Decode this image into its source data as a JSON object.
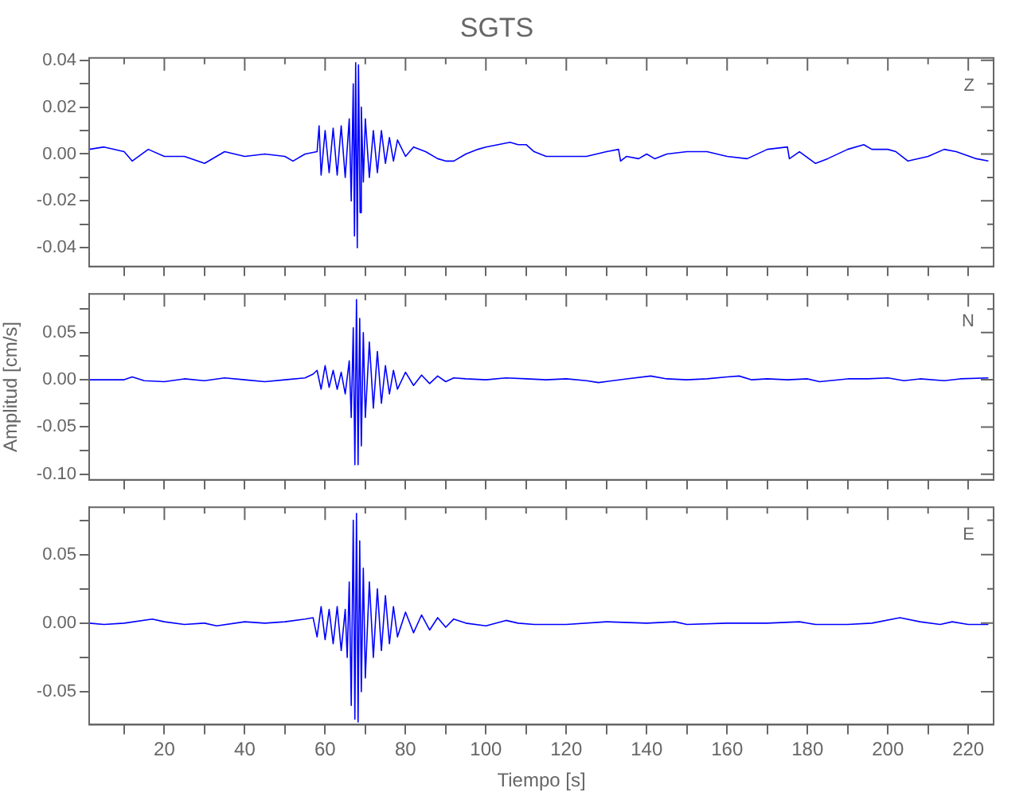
{
  "chart_data": [
    {
      "type": "line",
      "title": "SGTS",
      "tick_labels": "y",
      "grid": false,
      "legend": false,
      "marker": "none",
      "line_style": "solid",
      "xlim": [
        1.3,
        226.3
      ],
      "xticks": [
        {
          "value": 10,
          "label": null
        },
        20,
        {
          "value": 30,
          "label": null
        },
        40,
        {
          "value": 50,
          "label": null
        },
        60,
        {
          "value": 70,
          "label": null
        },
        80,
        {
          "value": 90,
          "label": null
        },
        100,
        {
          "value": 110,
          "label": null
        },
        120,
        {
          "value": 130,
          "label": null
        },
        140,
        {
          "value": 150,
          "label": null
        },
        160,
        {
          "value": 170,
          "label": null
        },
        180,
        {
          "value": 190,
          "label": null
        },
        200,
        {
          "value": 210,
          "label": null
        },
        220
      ],
      "ylim": [
        -0.048,
        0.041
      ],
      "yticks": [
        -0.04,
        {
          "value": -0.03,
          "label": null
        },
        -0.02,
        {
          "value": -0.01,
          "label": null
        },
        {
          "value": 0,
          "label": "0.00"
        },
        {
          "value": 0.01,
          "label": null
        },
        0.02,
        {
          "value": 0.03,
          "label": null
        },
        0.04
      ],
      "x": [
        1.3,
        5,
        10,
        12,
        16,
        20,
        25,
        30,
        35,
        40,
        45,
        50,
        52,
        55,
        58,
        58.5,
        59,
        60,
        61,
        62,
        63,
        64,
        65,
        66,
        66.5,
        67,
        67.3,
        67.6,
        68,
        68.3,
        68.7,
        69,
        69.5,
        70,
        71,
        72,
        73,
        74,
        75,
        76,
        77,
        78,
        80,
        82,
        85,
        88,
        90,
        92,
        95,
        98,
        100,
        103,
        106,
        108,
        110,
        112,
        115,
        120,
        125,
        130,
        133,
        133.5,
        135,
        138,
        140,
        142,
        145,
        150,
        155,
        160,
        165,
        170,
        175,
        175.5,
        178,
        182,
        185,
        190,
        194,
        196,
        200,
        202,
        205,
        210,
        214,
        217,
        222,
        225
      ],
      "series": [
        {
          "name": "Z",
          "color": "#0000ff",
          "values": [
            0.002,
            0.003,
            0.001,
            -0.003,
            0.002,
            -0.001,
            -0.001,
            -0.004,
            0.001,
            -0.001,
            0.0,
            -0.001,
            -0.003,
            0.0,
            0.001,
            0.012,
            -0.009,
            0.01,
            -0.008,
            0.011,
            -0.009,
            0.012,
            -0.01,
            0.015,
            -0.02,
            0.03,
            -0.035,
            0.039,
            -0.04,
            0.038,
            -0.025,
            0.02,
            -0.012,
            0.015,
            -0.01,
            0.01,
            -0.008,
            0.01,
            -0.004,
            0.007,
            -0.003,
            0.006,
            -0.001,
            0.003,
            0.001,
            -0.002,
            -0.003,
            -0.003,
            0.0,
            0.002,
            0.003,
            0.004,
            0.005,
            0.004,
            0.004,
            0.001,
            -0.001,
            -0.001,
            -0.001,
            0.001,
            0.002,
            -0.003,
            -0.001,
            -0.002,
            0.0,
            -0.002,
            0.0,
            0.001,
            0.001,
            -0.001,
            -0.002,
            0.002,
            0.003,
            -0.002,
            0.001,
            -0.004,
            -0.002,
            0.002,
            0.004,
            0.002,
            0.002,
            0.001,
            -0.003,
            -0.001,
            0.002,
            0.001,
            -0.002,
            -0.003
          ]
        }
      ]
    },
    {
      "type": "line",
      "ylabel": "Amplitud [cm/s]",
      "tick_labels": "y",
      "grid": false,
      "legend": false,
      "marker": "none",
      "line_style": "solid",
      "xlim": [
        1.3,
        226.3
      ],
      "xticks": [
        {
          "value": 10,
          "label": null
        },
        20,
        {
          "value": 30,
          "label": null
        },
        40,
        {
          "value": 50,
          "label": null
        },
        60,
        {
          "value": 70,
          "label": null
        },
        80,
        {
          "value": 90,
          "label": null
        },
        100,
        {
          "value": 110,
          "label": null
        },
        120,
        {
          "value": 130,
          "label": null
        },
        140,
        {
          "value": 150,
          "label": null
        },
        160,
        {
          "value": 170,
          "label": null
        },
        180,
        {
          "value": 190,
          "label": null
        },
        200,
        {
          "value": 210,
          "label": null
        },
        220
      ],
      "ylim": [
        -0.106,
        0.091
      ],
      "yticks": [
        {
          "value": -0.1,
          "label": "-0.10"
        },
        {
          "value": -0.075,
          "label": null
        },
        -0.05,
        {
          "value": -0.025,
          "label": null
        },
        {
          "value": 0,
          "label": "0.00"
        },
        {
          "value": 0.025,
          "label": null
        },
        0.05,
        {
          "value": 0.075,
          "label": null
        }
      ],
      "x": [
        1.3,
        10,
        12,
        15,
        20,
        25,
        30,
        35,
        40,
        45,
        50,
        55,
        57,
        58,
        59,
        60,
        61,
        62,
        63,
        64,
        65,
        66,
        66.5,
        67,
        67.4,
        67.8,
        68.2,
        68.6,
        69,
        69.5,
        70,
        71,
        72,
        73,
        74,
        75,
        76,
        77,
        78,
        80,
        82,
        84,
        86,
        88,
        90,
        92,
        95,
        100,
        105,
        110,
        115,
        120,
        125,
        128,
        135,
        141,
        145,
        150,
        155,
        160,
        163,
        166,
        170,
        175,
        180,
        183,
        190,
        195,
        200,
        204,
        208,
        214,
        218,
        225
      ],
      "series": [
        {
          "name": "N",
          "color": "#0000ff",
          "values": [
            0.0,
            0.0,
            0.003,
            -0.001,
            -0.002,
            0.001,
            -0.001,
            0.002,
            0.0,
            -0.002,
            0.0,
            0.002,
            0.006,
            0.01,
            -0.01,
            0.015,
            -0.008,
            0.01,
            -0.01,
            0.008,
            -0.015,
            0.02,
            -0.04,
            0.055,
            -0.09,
            0.085,
            -0.09,
            0.065,
            -0.07,
            0.05,
            -0.04,
            0.04,
            -0.03,
            0.03,
            -0.025,
            0.015,
            -0.015,
            0.01,
            -0.01,
            0.008,
            -0.006,
            0.005,
            -0.004,
            0.004,
            -0.002,
            0.002,
            0.001,
            0.0,
            0.002,
            0.001,
            0.0,
            0.001,
            -0.001,
            -0.003,
            0.001,
            0.004,
            0.001,
            0.0,
            0.001,
            0.003,
            0.004,
            0.0,
            0.001,
            0.0,
            0.001,
            -0.002,
            0.001,
            0.001,
            0.002,
            -0.001,
            0.001,
            -0.001,
            0.001,
            0.002
          ]
        }
      ]
    },
    {
      "type": "line",
      "xlabel": "Tiempo [s]",
      "grid": false,
      "legend": false,
      "marker": "none",
      "line_style": "solid",
      "xlim": [
        1.3,
        226.3
      ],
      "xticks": [
        {
          "value": 10,
          "label": null
        },
        20,
        {
          "value": 30,
          "label": null
        },
        40,
        {
          "value": 50,
          "label": null
        },
        60,
        {
          "value": 70,
          "label": null
        },
        80,
        {
          "value": 90,
          "label": null
        },
        100,
        {
          "value": 110,
          "label": null
        },
        120,
        {
          "value": 130,
          "label": null
        },
        140,
        {
          "value": 150,
          "label": null
        },
        160,
        {
          "value": 170,
          "label": null
        },
        180,
        {
          "value": 190,
          "label": null
        },
        200,
        {
          "value": 210,
          "label": null
        },
        220
      ],
      "ylim": [
        -0.074,
        0.0845
      ],
      "yticks": [
        -0.05,
        {
          "value": -0.025,
          "label": null
        },
        {
          "value": 0,
          "label": "0.00"
        },
        {
          "value": 0.025,
          "label": null
        },
        0.05,
        {
          "value": 0.075,
          "label": null
        }
      ],
      "x": [
        1.3,
        5,
        10,
        17,
        20,
        25,
        30,
        33,
        40,
        45,
        50,
        55,
        57,
        58,
        59,
        60,
        61,
        62,
        63,
        64,
        65,
        65.5,
        66,
        66.5,
        67,
        67.4,
        67.8,
        68.2,
        68.6,
        69,
        69.5,
        70,
        71,
        72,
        73,
        74,
        75,
        76,
        77,
        78,
        80,
        82,
        84,
        86,
        88,
        90,
        92,
        95,
        100,
        105,
        108,
        112,
        120,
        130,
        140,
        147,
        150,
        160,
        170,
        178,
        182,
        190,
        196,
        203,
        208,
        213,
        216,
        220,
        225
      ],
      "series": [
        {
          "name": "E",
          "color": "#0000ff",
          "values": [
            0.0,
            -0.001,
            0.0,
            0.003,
            0.001,
            -0.001,
            0.0,
            -0.002,
            0.001,
            0.0,
            0.001,
            0.003,
            0.004,
            -0.01,
            0.012,
            -0.012,
            0.01,
            -0.015,
            0.012,
            -0.02,
            0.01,
            -0.025,
            0.03,
            -0.06,
            0.075,
            -0.07,
            0.08,
            -0.072,
            0.06,
            -0.05,
            0.04,
            -0.04,
            0.03,
            -0.025,
            0.025,
            -0.02,
            0.02,
            -0.015,
            0.012,
            -0.01,
            0.008,
            -0.007,
            0.006,
            -0.005,
            0.004,
            -0.003,
            0.003,
            0.0,
            -0.002,
            0.002,
            0.0,
            -0.001,
            -0.001,
            0.001,
            0.0,
            0.001,
            -0.001,
            0.0,
            0.0,
            0.001,
            -0.001,
            -0.001,
            0.0,
            0.004,
            0.001,
            -0.001,
            0.001,
            -0.001,
            -0.001
          ]
        }
      ]
    }
  ]
}
